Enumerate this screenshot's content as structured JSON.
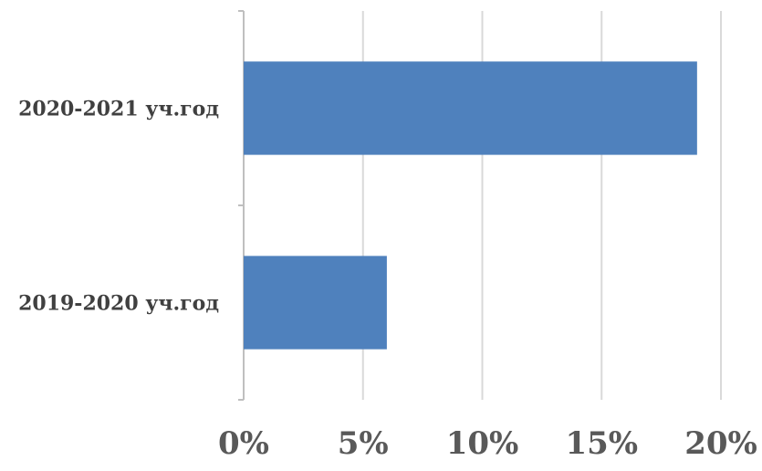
{
  "chart_data": {
    "type": "bar",
    "orientation": "horizontal",
    "categories": [
      "2020-2021 уч.год",
      "2019-2020 уч.год"
    ],
    "values": [
      19,
      6
    ],
    "xlim": [
      0,
      20
    ],
    "xticks": [
      0,
      5,
      10,
      15,
      20
    ],
    "tick_labels": [
      "0%",
      "5%",
      "10%",
      "15%",
      "20%"
    ],
    "title": "",
    "xlabel": "",
    "ylabel": "",
    "grid": "vertical",
    "legend": "none",
    "colors": {
      "bar": "#4f81bd",
      "grid": "#d9d9d9",
      "axis": "#bfbfbf"
    }
  }
}
